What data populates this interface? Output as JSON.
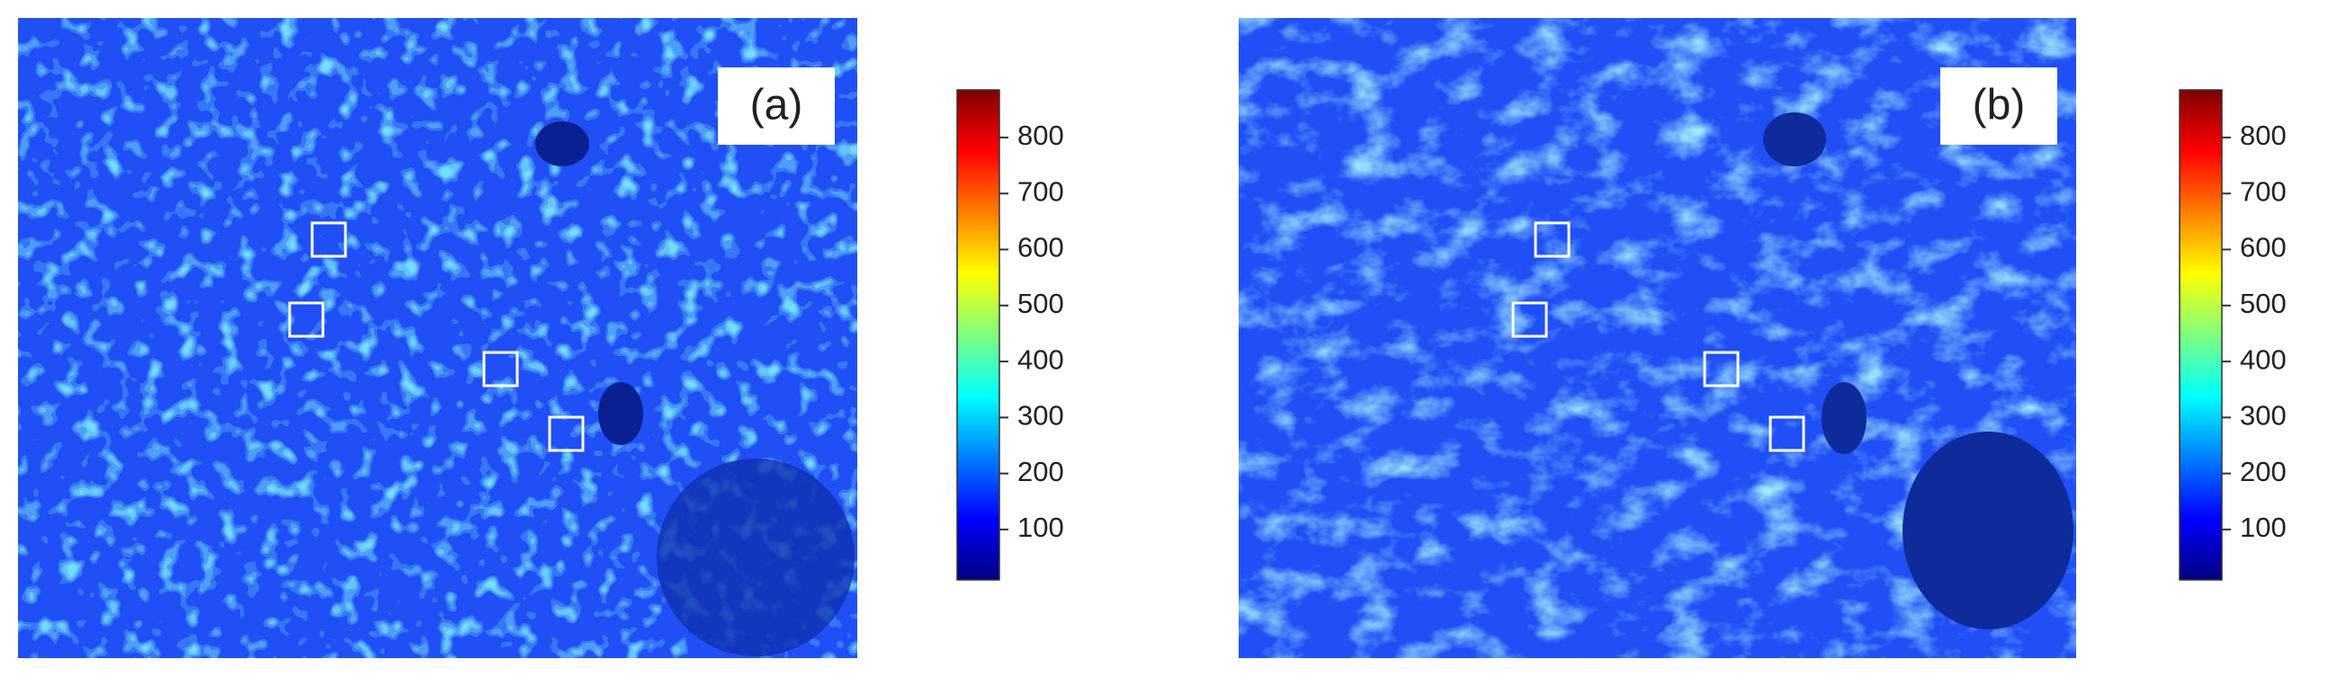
{
  "chart_data": [
    {
      "type": "heatmap",
      "panel_label": "(a)",
      "clim": [
        10,
        885
      ],
      "cticks": [
        100,
        200,
        300,
        400,
        500,
        600,
        700,
        800
      ],
      "colormap": [
        "#00007f",
        "#0000ff",
        "#007fff",
        "#00ffff",
        "#7fff7f",
        "#ffff00",
        "#ff7f00",
        "#ff0000",
        "#7f0000"
      ]
    },
    {
      "type": "heatmap",
      "panel_label": "(b)",
      "clim": [
        10,
        885
      ],
      "cticks": [
        100,
        200,
        300,
        400,
        500,
        600,
        700,
        800
      ],
      "colormap": [
        "#00007f",
        "#0000ff",
        "#007fff",
        "#00ffff",
        "#7fff7f",
        "#ffff00",
        "#ff7f00",
        "#ff0000",
        "#7f0000"
      ]
    }
  ]
}
